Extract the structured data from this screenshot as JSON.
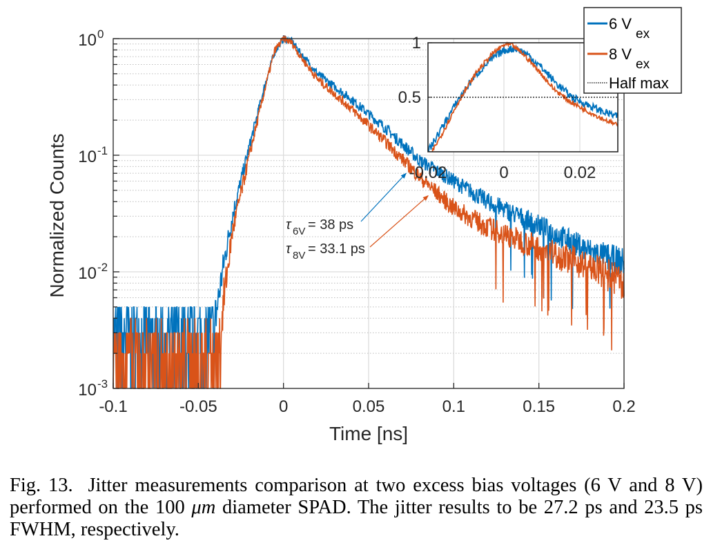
{
  "chart_data": [
    {
      "id": "main",
      "type": "line",
      "xlabel": "Time [ns]",
      "ylabel": "Normalized Counts",
      "xlim": [
        -0.1,
        0.2
      ],
      "ylim": [
        0.001,
        1
      ],
      "yscale": "log",
      "grid": true,
      "minor_grid": true,
      "xticks": [
        -0.1,
        -0.05,
        0,
        0.05,
        0.1,
        0.15,
        0.2
      ],
      "xtick_labels": [
        "-0.1",
        "-0.05",
        "0",
        "0.05",
        "0.1",
        "0.15",
        "0.2"
      ],
      "yticks": [
        0.001,
        0.01,
        0.1,
        1
      ],
      "ytick_labels": [
        {
          "base": "10",
          "exp": "-3"
        },
        {
          "base": "10",
          "exp": "-2"
        },
        {
          "base": "10",
          "exp": "-1"
        },
        {
          "base": "10",
          "exp": "0"
        }
      ],
      "series": [
        {
          "name": "6 V_ex",
          "color": "#0072BD",
          "noise_floor": 0.0025,
          "rise_start_ns": -0.04,
          "peak_ns": 0.0,
          "peak_value": 1.0,
          "decay_tau_ps": 38,
          "points": [
            [
              -0.1,
              0.003
            ],
            [
              -0.06,
              0.003
            ],
            [
              -0.04,
              0.004
            ],
            [
              -0.035,
              0.012
            ],
            [
              -0.03,
              0.03
            ],
            [
              -0.02,
              0.12
            ],
            [
              -0.01,
              0.45
            ],
            [
              -0.005,
              0.78
            ],
            [
              0,
              1.0
            ],
            [
              0.005,
              0.95
            ],
            [
              0.01,
              0.75
            ],
            [
              0.02,
              0.5
            ],
            [
              0.04,
              0.3
            ],
            [
              0.06,
              0.17
            ],
            [
              0.08,
              0.09
            ],
            [
              0.1,
              0.06
            ],
            [
              0.12,
              0.04
            ],
            [
              0.15,
              0.025
            ],
            [
              0.18,
              0.015
            ],
            [
              0.2,
              0.012
            ]
          ]
        },
        {
          "name": "8 V_ex",
          "color": "#D95319",
          "noise_floor": 0.002,
          "rise_start_ns": -0.037,
          "peak_ns": 0.0,
          "peak_value": 1.0,
          "decay_tau_ps": 33.1,
          "points": [
            [
              -0.1,
              0.0025
            ],
            [
              -0.06,
              0.0022
            ],
            [
              -0.038,
              0.002
            ],
            [
              -0.035,
              0.006
            ],
            [
              -0.03,
              0.022
            ],
            [
              -0.02,
              0.1
            ],
            [
              -0.01,
              0.42
            ],
            [
              -0.005,
              0.8
            ],
            [
              0,
              1.0
            ],
            [
              0.005,
              0.92
            ],
            [
              0.01,
              0.7
            ],
            [
              0.02,
              0.45
            ],
            [
              0.04,
              0.25
            ],
            [
              0.06,
              0.13
            ],
            [
              0.08,
              0.065
            ],
            [
              0.1,
              0.035
            ],
            [
              0.12,
              0.024
            ],
            [
              0.15,
              0.016
            ],
            [
              0.18,
              0.011
            ],
            [
              0.2,
              0.008
            ]
          ]
        }
      ],
      "annotations": [
        {
          "symbol": "τ",
          "subscript": "6V",
          "text": "= 38 ps",
          "color": "#0072BD",
          "arrow_to": [
            0.072,
            0.07
          ]
        },
        {
          "symbol": "τ",
          "subscript": "8V",
          "text": "= 33.1 ps",
          "color": "#D95319",
          "arrow_to": [
            0.085,
            0.045
          ]
        }
      ],
      "legend": {
        "position": "top-right",
        "entries": [
          {
            "label": "6 V",
            "subscript": "ex",
            "color": "#0072BD",
            "style": "solid"
          },
          {
            "label": "8 V",
            "subscript": "ex",
            "color": "#D95319",
            "style": "solid"
          },
          {
            "label": "Half max",
            "color": "#000000",
            "style": "dotted"
          }
        ]
      }
    },
    {
      "id": "inset",
      "type": "line",
      "xlim": [
        -0.02,
        0.03
      ],
      "ylim": [
        0,
        1
      ],
      "yscale": "linear",
      "xticks": [
        -0.02,
        0,
        0.02
      ],
      "xtick_labels": [
        "-0.02",
        "0",
        "0.02"
      ],
      "yticks": [
        0.5,
        1
      ],
      "ytick_labels": [
        "0.5",
        "1"
      ],
      "half_max": 0.5,
      "series": [
        {
          "name": "6 V_ex",
          "color": "#0072BD",
          "points": [
            [
              -0.02,
              0.0
            ],
            [
              -0.018,
              0.12
            ],
            [
              -0.015,
              0.3
            ],
            [
              -0.012,
              0.48
            ],
            [
              -0.008,
              0.68
            ],
            [
              -0.004,
              0.83
            ],
            [
              0,
              0.93
            ],
            [
              0.003,
              0.95
            ],
            [
              0.006,
              0.9
            ],
            [
              0.01,
              0.77
            ],
            [
              0.014,
              0.62
            ],
            [
              0.018,
              0.5
            ],
            [
              0.022,
              0.43
            ],
            [
              0.026,
              0.37
            ],
            [
              0.03,
              0.32
            ]
          ]
        },
        {
          "name": "8 V_ex",
          "color": "#D95319",
          "points": [
            [
              -0.019,
              0.0
            ],
            [
              -0.017,
              0.12
            ],
            [
              -0.014,
              0.32
            ],
            [
              -0.011,
              0.52
            ],
            [
              -0.007,
              0.74
            ],
            [
              -0.003,
              0.9
            ],
            [
              0,
              0.98
            ],
            [
              0.002,
              0.98
            ],
            [
              0.005,
              0.9
            ],
            [
              0.009,
              0.75
            ],
            [
              0.013,
              0.58
            ],
            [
              0.017,
              0.47
            ],
            [
              0.021,
              0.39
            ],
            [
              0.025,
              0.32
            ],
            [
              0.03,
              0.24
            ]
          ]
        }
      ]
    }
  ],
  "caption": {
    "label": "Fig. 13.",
    "text_part1": "Jitter measurements comparison at two excess bias voltages (6 V and 8 V) performed on the 100",
    "unit_italic": "μm",
    "text_part2": "diameter SPAD. The jitter results to be 27.2 ps and 23.5 ps FWHM, respectively."
  }
}
